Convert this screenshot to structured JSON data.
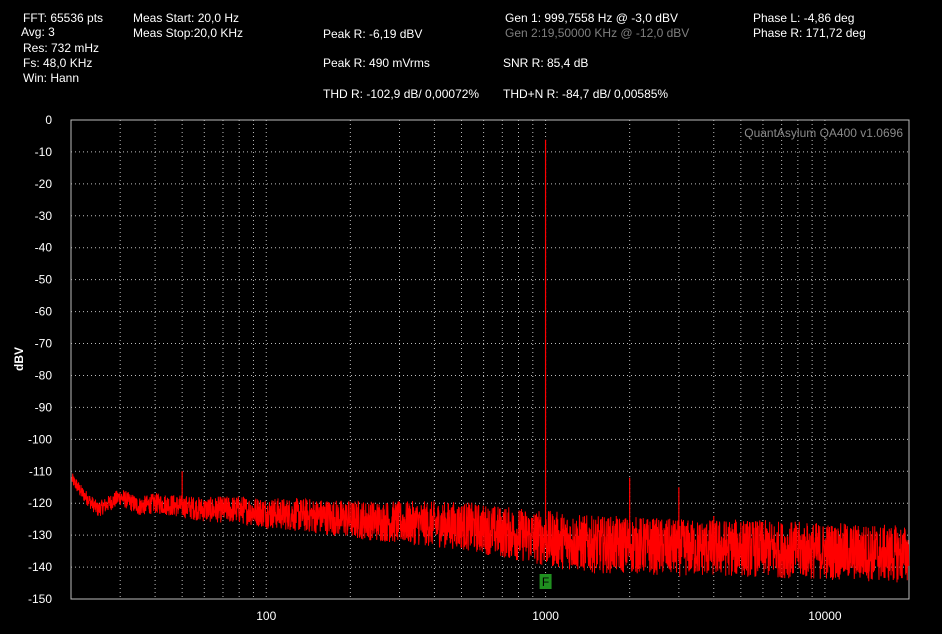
{
  "header": {
    "fft": "FFT: 65536 pts",
    "avg": "Avg: 3",
    "res": "Res: 732 mHz",
    "fs": "Fs: 48,0 KHz",
    "win": "Win: Hann",
    "meas_start": "Meas Start: 20,0 Hz",
    "meas_stop": "Meas Stop:20,0 KHz",
    "peak_dbv": "Peak R: -6,19 dBV",
    "peak_vrms": "Peak R: 490 mVrms",
    "thd": "THD R: -102,9 dB/ 0,00072%",
    "gen1": "Gen 1: 999,7558 Hz @ -3,0  dBV",
    "gen2": "Gen 2:19,50000 KHz @ -12,0  dBV",
    "snr": "SNR R: 85,4 dB",
    "thdn": "THD+N R: -84,7 dB/ 0,00585%",
    "phase_l": "Phase L: -4,86 deg",
    "phase_r": "Phase R: 171,72 deg"
  },
  "watermark": "QuantAsylum QA400 v1.0696",
  "marker_label": "F",
  "colors": {
    "trace": "#ff0000",
    "grid": "#bdbdbd",
    "marker": "#1f8f1f",
    "background": "#000000"
  },
  "chart_data": {
    "type": "line",
    "title": "",
    "xlabel": "",
    "ylabel": "dBV",
    "x_scale": "log",
    "xlim": [
      20,
      20000
    ],
    "ylim": [
      -150,
      0
    ],
    "x_ticks": [
      100,
      1000,
      10000
    ],
    "x_tick_labels": [
      "100",
      "1000",
      "10000"
    ],
    "y_ticks": [
      0,
      -10,
      -20,
      -30,
      -40,
      -50,
      -60,
      -70,
      -80,
      -90,
      -100,
      -110,
      -120,
      -130,
      -140,
      -150
    ],
    "y_tick_labels": [
      "0",
      "-10",
      "-20",
      "-30",
      "-40",
      "-50",
      "-60",
      "-70",
      "-80",
      "-90",
      "-100",
      "-110",
      "-120",
      "-130",
      "-140",
      "-150"
    ],
    "grid": true,
    "legend": "none",
    "series": [
      {
        "noise_floor": {
          "x": [
            20,
            22,
            25,
            30,
            35,
            40,
            50,
            60,
            80,
            100,
            150,
            200,
            300,
            500,
            700,
            1000,
            1500,
            2000,
            3000,
            5000,
            10000,
            20000
          ],
          "y": [
            -112,
            -117,
            -122,
            -118,
            -121,
            -120,
            -121,
            -122,
            -122,
            -123,
            -124,
            -125,
            -126,
            -127,
            -129,
            -131,
            -133,
            -133,
            -134,
            -134,
            -135,
            -136
          ]
        },
        "peaks": [
          {
            "x": 50,
            "y": -110
          },
          {
            "x": 999.76,
            "y": -6.19
          },
          {
            "x": 2000,
            "y": -112
          },
          {
            "x": 3000,
            "y": -115
          },
          {
            "x": 4000,
            "y": -124
          },
          {
            "x": 5000,
            "y": -126
          }
        ]
      }
    ],
    "marker": {
      "x": 1000
    }
  }
}
